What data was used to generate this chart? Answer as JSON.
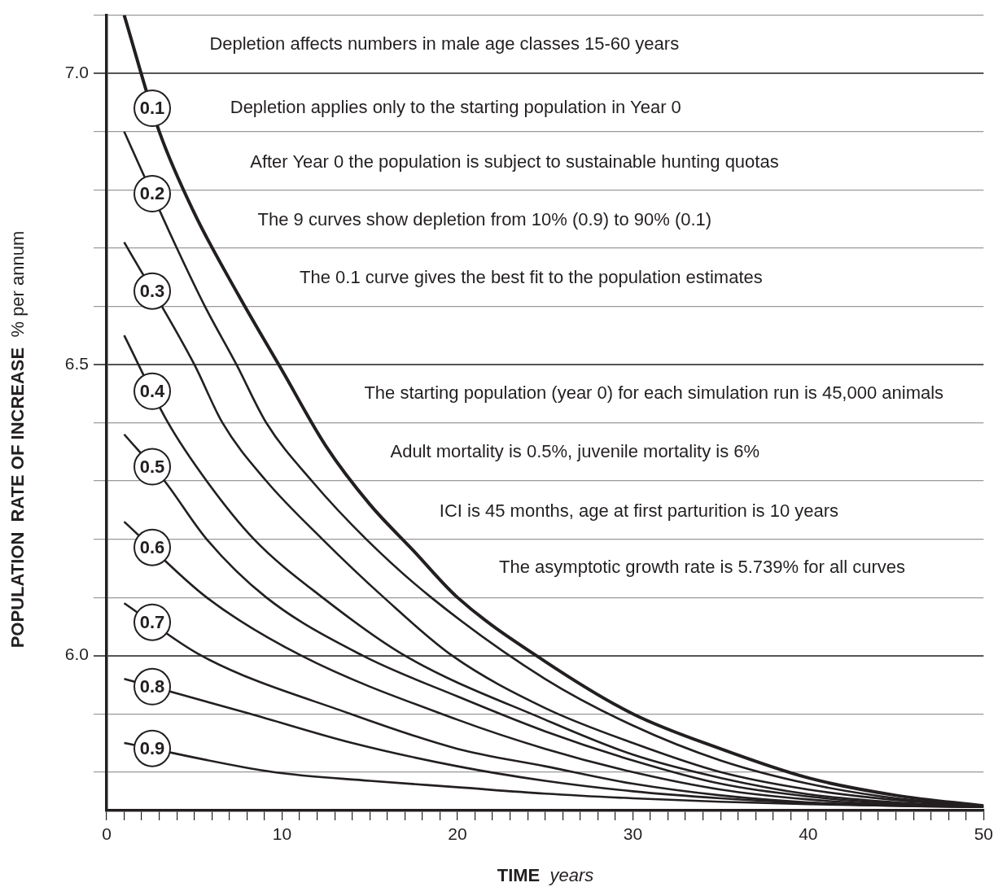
{
  "chart_data": {
    "type": "line",
    "xlabel": "TIME  years",
    "ylabel": "POPULATION  RATE OF INCREASE  % per annum",
    "xlim": [
      0,
      50
    ],
    "ylim": [
      5.734,
      7.1
    ],
    "xticks": [
      0,
      {
        "value": 1,
        "label": null
      },
      {
        "value": 2,
        "label": null
      },
      {
        "value": 3,
        "label": null
      },
      {
        "value": 4,
        "label": null
      },
      {
        "value": 5,
        "label": null
      },
      {
        "value": 6,
        "label": null
      },
      {
        "value": 7,
        "label": null
      },
      {
        "value": 8,
        "label": null
      },
      {
        "value": 9,
        "label": null
      },
      10,
      {
        "value": 11,
        "label": null
      },
      {
        "value": 12,
        "label": null
      },
      {
        "value": 13,
        "label": null
      },
      {
        "value": 14,
        "label": null
      },
      {
        "value": 15,
        "label": null
      },
      {
        "value": 16,
        "label": null
      },
      {
        "value": 17,
        "label": null
      },
      {
        "value": 18,
        "label": null
      },
      {
        "value": 19,
        "label": null
      },
      20,
      {
        "value": 21,
        "label": null
      },
      {
        "value": 22,
        "label": null
      },
      {
        "value": 23,
        "label": null
      },
      {
        "value": 24,
        "label": null
      },
      {
        "value": 25,
        "label": null
      },
      {
        "value": 26,
        "label": null
      },
      {
        "value": 27,
        "label": null
      },
      {
        "value": 28,
        "label": null
      },
      {
        "value": 29,
        "label": null
      },
      30,
      {
        "value": 31,
        "label": null
      },
      {
        "value": 32,
        "label": null
      },
      {
        "value": 33,
        "label": null
      },
      {
        "value": 34,
        "label": null
      },
      {
        "value": 35,
        "label": null
      },
      {
        "value": 36,
        "label": null
      },
      {
        "value": 37,
        "label": null
      },
      {
        "value": 38,
        "label": null
      },
      {
        "value": 39,
        "label": null
      },
      40,
      {
        "value": 41,
        "label": null
      },
      {
        "value": 42,
        "label": null
      },
      {
        "value": 43,
        "label": null
      },
      {
        "value": 44,
        "label": null
      },
      {
        "value": 45,
        "label": null
      },
      {
        "value": 46,
        "label": null
      },
      {
        "value": 47,
        "label": null
      },
      {
        "value": 48,
        "label": null
      },
      {
        "value": 49,
        "label": null
      },
      50
    ],
    "yticks": [
      {
        "value": 5.8,
        "label": null
      },
      {
        "value": 5.9,
        "label": null
      },
      {
        "value": 6,
        "label": "6.0"
      },
      {
        "value": 6.1,
        "label": null
      },
      {
        "value": 6.2,
        "label": null
      },
      {
        "value": 6.3,
        "label": null
      },
      {
        "value": 6.4,
        "label": null
      },
      6.5,
      {
        "value": 6.6,
        "label": null
      },
      {
        "value": 6.7,
        "label": null
      },
      {
        "value": 6.8,
        "label": null
      },
      {
        "value": 6.9,
        "label": null
      },
      {
        "value": 7,
        "label": "7.0"
      },
      {
        "value": 7.1,
        "label": null
      }
    ],
    "grid": "y",
    "legend": false,
    "marker": "none",
    "line_style": "solid",
    "series": [
      {
        "name": "0.1",
        "color": "#231f20",
        "x": [
          1,
          3,
          5,
          7.5,
          10,
          12.5,
          15,
          17.5,
          20,
          25,
          30,
          35,
          40,
          45,
          50
        ],
        "values": [
          7.1,
          6.9,
          6.76,
          6.62,
          6.49,
          6.36,
          6.26,
          6.18,
          6.1,
          5.99,
          5.9,
          5.84,
          5.79,
          5.76,
          5.742
        ]
      },
      {
        "name": "0.2",
        "color": "#231f20",
        "x": [
          1,
          4,
          5.6,
          7.4,
          9.1,
          11.7,
          14.8,
          18.5,
          25,
          30,
          35,
          40,
          45,
          50
        ],
        "values": [
          6.9,
          6.7,
          6.6,
          6.5,
          6.4,
          6.3,
          6.2,
          6.1,
          5.96,
          5.88,
          5.82,
          5.78,
          5.755,
          5.742
        ]
      },
      {
        "name": "0.3",
        "color": "#231f20",
        "x": [
          1,
          5,
          6.6,
          9.1,
          12.3,
          15.8,
          19.7,
          25,
          30,
          35,
          40,
          45,
          50
        ],
        "values": [
          6.71,
          6.5,
          6.4,
          6.3,
          6.2,
          6.1,
          6.0,
          5.91,
          5.85,
          5.8,
          5.77,
          5.752,
          5.742
        ]
      },
      {
        "name": "0.4",
        "color": "#231f20",
        "x": [
          1,
          3.5,
          5.7,
          8.4,
          12.3,
          17,
          25,
          30,
          35,
          40,
          45,
          50
        ],
        "values": [
          6.55,
          6.4,
          6.3,
          6.2,
          6.1,
          6.0,
          5.89,
          5.83,
          5.79,
          5.762,
          5.748,
          5.741
        ]
      },
      {
        "name": "0.5",
        "color": "#231f20",
        "x": [
          1,
          3.3,
          5.7,
          9.1,
          14.6,
          20,
          25,
          30,
          35,
          40,
          45,
          50
        ],
        "values": [
          6.38,
          6.3,
          6.2,
          6.1,
          6.0,
          5.93,
          5.87,
          5.82,
          5.78,
          5.758,
          5.746,
          5.741
        ]
      },
      {
        "name": "0.6",
        "color": "#231f20",
        "x": [
          1,
          5.7,
          11.1,
          20,
          25,
          30,
          35,
          40,
          45,
          50
        ],
        "values": [
          6.23,
          6.1,
          6.0,
          5.89,
          5.84,
          5.8,
          5.77,
          5.753,
          5.744,
          5.74
        ]
      },
      {
        "name": "0.7",
        "color": "#231f20",
        "x": [
          1,
          5.4,
          13.9,
          20,
          25,
          30,
          35,
          40,
          45,
          50
        ],
        "values": [
          6.09,
          6.0,
          5.9,
          5.84,
          5.81,
          5.78,
          5.76,
          5.748,
          5.743,
          5.74
        ]
      },
      {
        "name": "0.8",
        "color": "#231f20",
        "x": [
          1,
          8.2,
          14,
          20,
          25,
          30,
          35,
          40,
          45,
          50
        ],
        "values": [
          5.96,
          5.9,
          5.85,
          5.81,
          5.785,
          5.767,
          5.755,
          5.747,
          5.742,
          5.74
        ]
      },
      {
        "name": "0.9",
        "color": "#231f20",
        "x": [
          1,
          9.5,
          15,
          20,
          25,
          30,
          35,
          40,
          45,
          50
        ],
        "values": [
          5.85,
          5.8,
          5.785,
          5.774,
          5.763,
          5.755,
          5.749,
          5.745,
          5.742,
          5.74
        ]
      }
    ],
    "annotations": [
      "Depletion affects numbers in male age classes 15-60 years",
      "Depletion applies only to the starting population in Year 0",
      "After Year 0 the population is subject to sustainable hunting quotas",
      "The 9 curves show depletion from 10% (0.9) to 90% (0.1)",
      "The 0.1 curve gives the best fit to the population estimates",
      "The starting population (year 0) for each simulation run is 45,000 animals",
      "Adult mortality is 0.5%, juvenile mortality is 6%",
      "ICI is 45 months, age at first parturition is 10 years",
      "The asymptotic growth rate is 5.739% for all curves"
    ]
  }
}
